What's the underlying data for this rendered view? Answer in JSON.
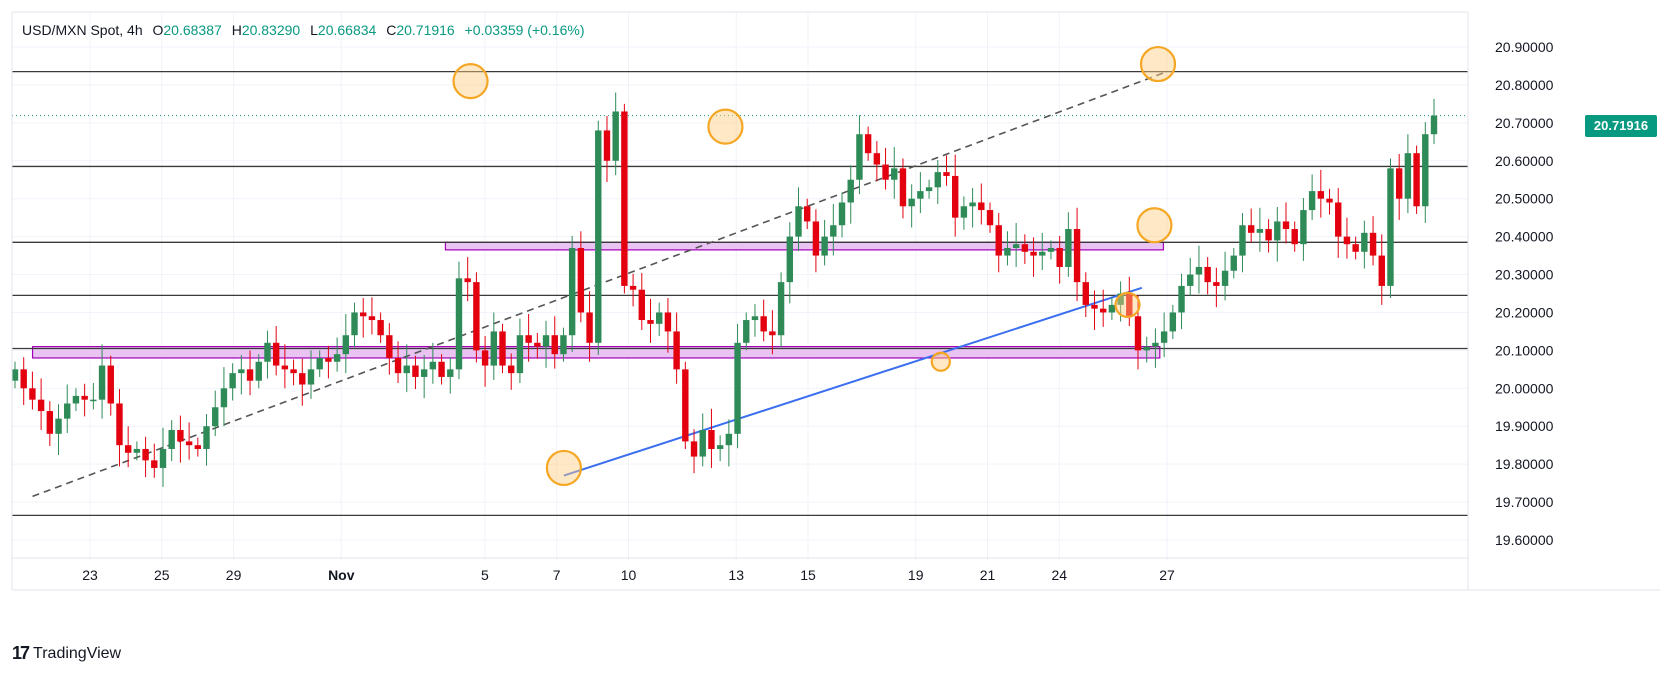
{
  "header": {
    "symbol": "USD/MXN Spot, 4h",
    "open_key": "O",
    "open": "20.68387",
    "high_key": "H",
    "high": "20.83290",
    "low_key": "L",
    "low": "20.66834",
    "close_key": "C",
    "close": "20.71916",
    "change": "+0.03359 (+0.16%)"
  },
  "brand": {
    "logo": "17",
    "name": "TradingView"
  },
  "last_price_label": "20.71916",
  "colors": {
    "up": "#2e8b57",
    "down": "#e3000f",
    "trend": "#3b6ff0",
    "zone": "#e9c4f2",
    "zone_border": "#a300b8",
    "marker": "#f5a623"
  },
  "chart_data": {
    "type": "candlestick",
    "y_axis": {
      "range": [
        19.56,
        20.95
      ],
      "ticks": [
        19.6,
        19.7,
        19.8,
        19.9,
        20.0,
        20.1,
        20.2,
        20.3,
        20.4,
        20.5,
        20.6,
        20.7,
        20.8,
        20.9
      ],
      "tick_labels": [
        "19.60000",
        "19.70000",
        "19.80000",
        "19.90000",
        "20.00000",
        "20.10000",
        "20.20000",
        "20.30000",
        "20.40000",
        "20.50000",
        "20.60000",
        "20.70000",
        "20.80000",
        "20.90000"
      ]
    },
    "x_axis": {
      "ticks": [
        {
          "label": "23",
          "day": 0
        },
        {
          "label": "25",
          "day": 2
        },
        {
          "label": "29",
          "day": 4
        },
        {
          "label": "Nov",
          "day": 7
        },
        {
          "label": "5",
          "day": 11
        },
        {
          "label": "7",
          "day": 13
        },
        {
          "label": "10",
          "day": 15
        },
        {
          "label": "13",
          "day": 18
        },
        {
          "label": "15",
          "day": 20
        },
        {
          "label": "19",
          "day": 23
        },
        {
          "label": "21",
          "day": 25
        },
        {
          "label": "24",
          "day": 27
        },
        {
          "label": "27",
          "day": 30
        }
      ]
    },
    "horizontal_levels": [
      20.835,
      20.585,
      20.385,
      20.245,
      20.105,
      19.665
    ],
    "zones": [
      {
        "low": 20.365,
        "high": 20.385,
        "from_day": 9.9,
        "to_day": 29.9
      },
      {
        "low": 20.08,
        "high": 20.11,
        "from_day": -1.6,
        "to_day": 29.8
      }
    ],
    "last_price": 20.71916,
    "trendlines": [
      {
        "style": "dashed",
        "x1": -1.6,
        "y1": 19.715,
        "x2": 30.0,
        "y2": 20.835
      },
      {
        "style": "solid",
        "x1": 13.2,
        "y1": 19.77,
        "x2": 29.3,
        "y2": 20.265
      }
    ],
    "markers": [
      {
        "day": 10.6,
        "price": 20.81,
        "size": "large"
      },
      {
        "day": 13.2,
        "price": 19.79,
        "size": "large"
      },
      {
        "day": 17.7,
        "price": 20.69,
        "size": "large"
      },
      {
        "day": 23.7,
        "price": 20.07,
        "size": "small"
      },
      {
        "day": 28.9,
        "price": 20.22,
        "size": "medium"
      },
      {
        "day": 29.65,
        "price": 20.43,
        "size": "large"
      },
      {
        "day": 29.75,
        "price": 20.855,
        "size": "large"
      }
    ],
    "closes": [
      20.05,
      20.0,
      19.97,
      19.94,
      19.88,
      19.92,
      19.96,
      19.98,
      19.97,
      19.97,
      20.06,
      19.96,
      19.85,
      19.83,
      19.84,
      19.81,
      19.79,
      19.84,
      19.89,
      19.86,
      19.85,
      19.84,
      19.9,
      19.95,
      20.0,
      20.04,
      20.05,
      20.02,
      20.07,
      20.12,
      20.06,
      20.05,
      20.04,
      20.01,
      20.05,
      20.08,
      20.07,
      20.09,
      20.14,
      20.2,
      20.19,
      20.18,
      20.14,
      20.08,
      20.04,
      20.06,
      20.03,
      20.05,
      20.07,
      20.03,
      20.05,
      20.29,
      20.28,
      20.1,
      20.06,
      20.15,
      20.06,
      20.04,
      20.14,
      20.12,
      20.11,
      20.14,
      20.09,
      20.14,
      20.37,
      20.2,
      20.12,
      20.68,
      20.6,
      20.73,
      20.27,
      20.26,
      20.18,
      20.17,
      20.2,
      20.15,
      20.05,
      19.86,
      19.82,
      19.89,
      19.84,
      19.85,
      19.88,
      20.12,
      20.18,
      20.19,
      20.15,
      20.14,
      20.28,
      20.4,
      20.48,
      20.44,
      20.35,
      20.4,
      20.43,
      20.49,
      20.55,
      20.67,
      20.62,
      20.59,
      20.55,
      20.58,
      20.48,
      20.5,
      20.52,
      20.53,
      20.57,
      20.56,
      20.45,
      20.48,
      20.49,
      20.47,
      20.43,
      20.35,
      20.37,
      20.38,
      20.36,
      20.35,
      20.36,
      20.37,
      20.32,
      20.42,
      20.28,
      20.22,
      20.21,
      20.2,
      20.22,
      20.25,
      20.19,
      20.1,
      20.11,
      20.12,
      20.15,
      20.2,
      20.27,
      20.3,
      20.32,
      20.28,
      20.27,
      20.31,
      20.35,
      20.43,
      20.41,
      20.42,
      20.39,
      20.44,
      20.42,
      20.38,
      20.47,
      20.52,
      20.5,
      20.49,
      20.4,
      20.38,
      20.36,
      20.41,
      20.35,
      20.27,
      20.58,
      20.5,
      20.62,
      20.48,
      20.67,
      20.71916
    ]
  }
}
